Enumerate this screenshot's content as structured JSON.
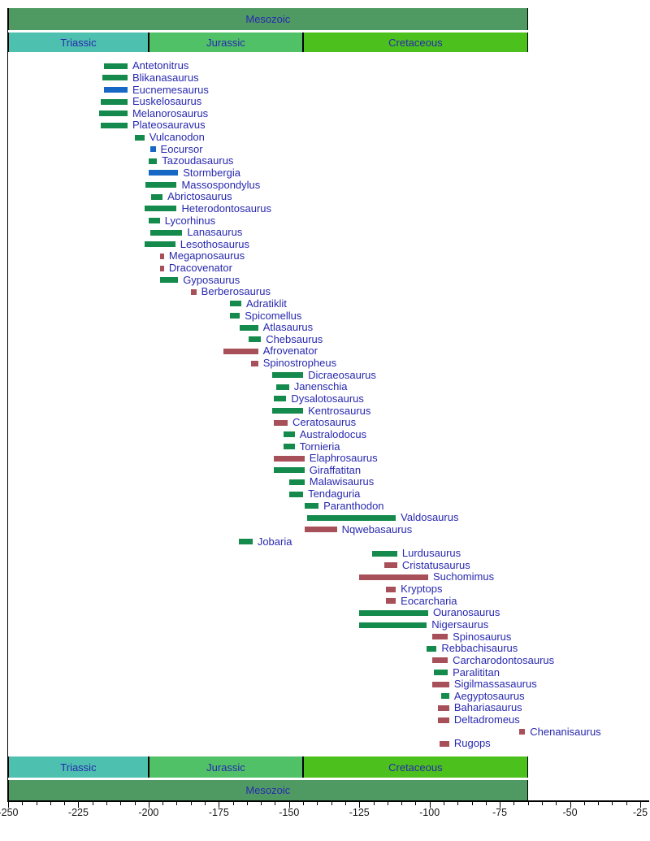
{
  "chart_data": {
    "type": "bar",
    "variant": "horizontal-timeline",
    "title": "",
    "xlabel": "",
    "x_axis": {
      "min": -250,
      "max": -25,
      "major_tick_step": 25,
      "minor_tick_step": 5,
      "major_ticks": [
        {
          "v": -250,
          "label": "-250"
        },
        {
          "v": -225,
          "label": "-225"
        },
        {
          "v": -200,
          "label": "-200"
        },
        {
          "v": -175,
          "label": "-175"
        },
        {
          "v": -150,
          "label": "-150"
        },
        {
          "v": -125,
          "label": "-125"
        },
        {
          "v": -100,
          "label": "-100"
        },
        {
          "v": -75,
          "label": "-75"
        },
        {
          "v": -50,
          "label": "-50"
        },
        {
          "v": -25,
          "label": "-25"
        }
      ]
    },
    "eras": {
      "top_label": "Mesozoic",
      "mesozoic": {
        "start": -250,
        "end": -65
      },
      "periods": [
        {
          "label": "Triassic",
          "start": -250,
          "end": -200,
          "color_key": "triassic"
        },
        {
          "label": "Jurassic",
          "start": -200,
          "end": -145,
          "color_key": "jurassic"
        },
        {
          "label": "Cretaceous",
          "start": -145,
          "end": -65,
          "color_key": "cretaceous"
        }
      ]
    },
    "taxa": [
      {
        "name": "Antetonitrus",
        "start": -216,
        "end": -207.5,
        "group": "green"
      },
      {
        "name": "Blikanasaurus",
        "start": -216.5,
        "end": -207.5,
        "group": "green"
      },
      {
        "name": "Eucnemesaurus",
        "start": -216,
        "end": -207.5,
        "group": "blue"
      },
      {
        "name": "Euskelosaurus",
        "start": -217,
        "end": -207.5,
        "group": "green"
      },
      {
        "name": "Melanorosaurus",
        "start": -217.5,
        "end": -207.5,
        "group": "green"
      },
      {
        "name": "Plateosauravus",
        "start": -217,
        "end": -207.5,
        "group": "green"
      },
      {
        "name": "Vulcanodon",
        "start": -205,
        "end": -201.5,
        "group": "green"
      },
      {
        "name": "Eocursor",
        "start": -199.5,
        "end": -197.5,
        "group": "blue"
      },
      {
        "name": "Tazoudasaurus",
        "start": -200,
        "end": -197,
        "group": "green"
      },
      {
        "name": "Stormbergia",
        "start": -200,
        "end": -189.5,
        "group": "blue"
      },
      {
        "name": "Massospondylus",
        "start": -201,
        "end": -190,
        "group": "green"
      },
      {
        "name": "Abrictosaurus",
        "start": -199,
        "end": -195,
        "group": "green"
      },
      {
        "name": "Heterodontosaurus",
        "start": -201.5,
        "end": -190,
        "group": "green"
      },
      {
        "name": "Lycorhinus",
        "start": -200,
        "end": -196,
        "group": "green"
      },
      {
        "name": "Lanasaurus",
        "start": -199.5,
        "end": -188,
        "group": "green"
      },
      {
        "name": "Lesothosaurus",
        "start": -201.5,
        "end": -190.5,
        "group": "green"
      },
      {
        "name": "Megapnosaurus",
        "start": -196,
        "end": -194.5,
        "group": "red"
      },
      {
        "name": "Dracovenator",
        "start": -196,
        "end": -194.5,
        "group": "red"
      },
      {
        "name": "Gyposaurus",
        "start": -196,
        "end": -189.5,
        "group": "green"
      },
      {
        "name": "Berberosaurus",
        "start": -185,
        "end": -183,
        "group": "red"
      },
      {
        "name": "Adratiklit",
        "start": -171,
        "end": -167,
        "group": "green"
      },
      {
        "name": "Spicomellus",
        "start": -171,
        "end": -167.5,
        "group": "green"
      },
      {
        "name": "Atlasaurus",
        "start": -167.5,
        "end": -161,
        "group": "green"
      },
      {
        "name": "Chebsaurus",
        "start": -164.5,
        "end": -160,
        "group": "green"
      },
      {
        "name": "Afrovenator",
        "start": -173.5,
        "end": -161,
        "group": "red"
      },
      {
        "name": "Spinostropheus",
        "start": -163.5,
        "end": -161,
        "group": "red"
      },
      {
        "name": "Dicraeosaurus",
        "start": -156,
        "end": -145,
        "group": "green"
      },
      {
        "name": "Janenschia",
        "start": -154.5,
        "end": -150,
        "group": "green"
      },
      {
        "name": "Dysalotosaurus",
        "start": -155.5,
        "end": -151,
        "group": "green"
      },
      {
        "name": "Kentrosaurus",
        "start": -156,
        "end": -145,
        "group": "green"
      },
      {
        "name": "Ceratosaurus",
        "start": -155.5,
        "end": -150.5,
        "group": "red"
      },
      {
        "name": "Australodocus",
        "start": -152,
        "end": -148,
        "group": "green"
      },
      {
        "name": "Tornieria",
        "start": -152,
        "end": -148,
        "group": "green"
      },
      {
        "name": "Elaphrosaurus",
        "start": -155.5,
        "end": -144.5,
        "group": "red"
      },
      {
        "name": "Giraffatitan",
        "start": -155.5,
        "end": -144.5,
        "group": "green"
      },
      {
        "name": "Malawisaurus",
        "start": -150,
        "end": -144.5,
        "group": "green"
      },
      {
        "name": "Tendaguria",
        "start": -150,
        "end": -145,
        "group": "green"
      },
      {
        "name": "Paranthodon",
        "start": -144.5,
        "end": -139.5,
        "group": "green"
      },
      {
        "name": "Valdosaurus",
        "start": -143.5,
        "end": -112,
        "group": "green"
      },
      {
        "name": "Nqwebasaurus",
        "start": -144.5,
        "end": -133,
        "group": "red"
      },
      {
        "name": "Jobaria",
        "start": -168,
        "end": -163,
        "group": "green"
      },
      {
        "name": "Lurdusaurus",
        "start": -120.5,
        "end": -111.5,
        "group": "green"
      },
      {
        "name": "Cristatusaurus",
        "start": -116,
        "end": -111.5,
        "group": "red"
      },
      {
        "name": "Suchomimus",
        "start": -125,
        "end": -100.5,
        "group": "red"
      },
      {
        "name": "Kryptops",
        "start": -115.5,
        "end": -112,
        "group": "red"
      },
      {
        "name": "Eocarcharia",
        "start": -115.5,
        "end": -112,
        "group": "red"
      },
      {
        "name": "Ouranosaurus",
        "start": -125,
        "end": -100.5,
        "group": "green"
      },
      {
        "name": "Nigersaurus",
        "start": -125,
        "end": -101,
        "group": "green"
      },
      {
        "name": "Spinosaurus",
        "start": -99,
        "end": -93.5,
        "group": "red"
      },
      {
        "name": "Rebbachisaurus",
        "start": -101,
        "end": -97.5,
        "group": "green"
      },
      {
        "name": "Carcharodontosaurus",
        "start": -99,
        "end": -93.5,
        "group": "red"
      },
      {
        "name": "Paralititan",
        "start": -98.5,
        "end": -93.5,
        "group": "green"
      },
      {
        "name": "Sigilmassasaurus",
        "start": -99,
        "end": -93,
        "group": "red"
      },
      {
        "name": "Aegyptosaurus",
        "start": -96,
        "end": -93,
        "group": "green"
      },
      {
        "name": "Bahariasaurus",
        "start": -97,
        "end": -93,
        "group": "red"
      },
      {
        "name": "Deltadromeus",
        "start": -97,
        "end": -93,
        "group": "red"
      },
      {
        "name": "Chenanisaurus",
        "start": -68,
        "end": -66,
        "group": "red"
      },
      {
        "name": "Rugops",
        "start": -96.5,
        "end": -93,
        "group": "red"
      }
    ]
  },
  "colors": {
    "green": "#148a4d",
    "blue": "#1668c4",
    "red": "#a85059",
    "label_text": "#2828b0",
    "axis_text": "#161616",
    "mesozoic": "#4f9a63",
    "triassic": "#4dc0af",
    "jurassic": "#50c167",
    "cretaceous": "#4cc01c"
  }
}
